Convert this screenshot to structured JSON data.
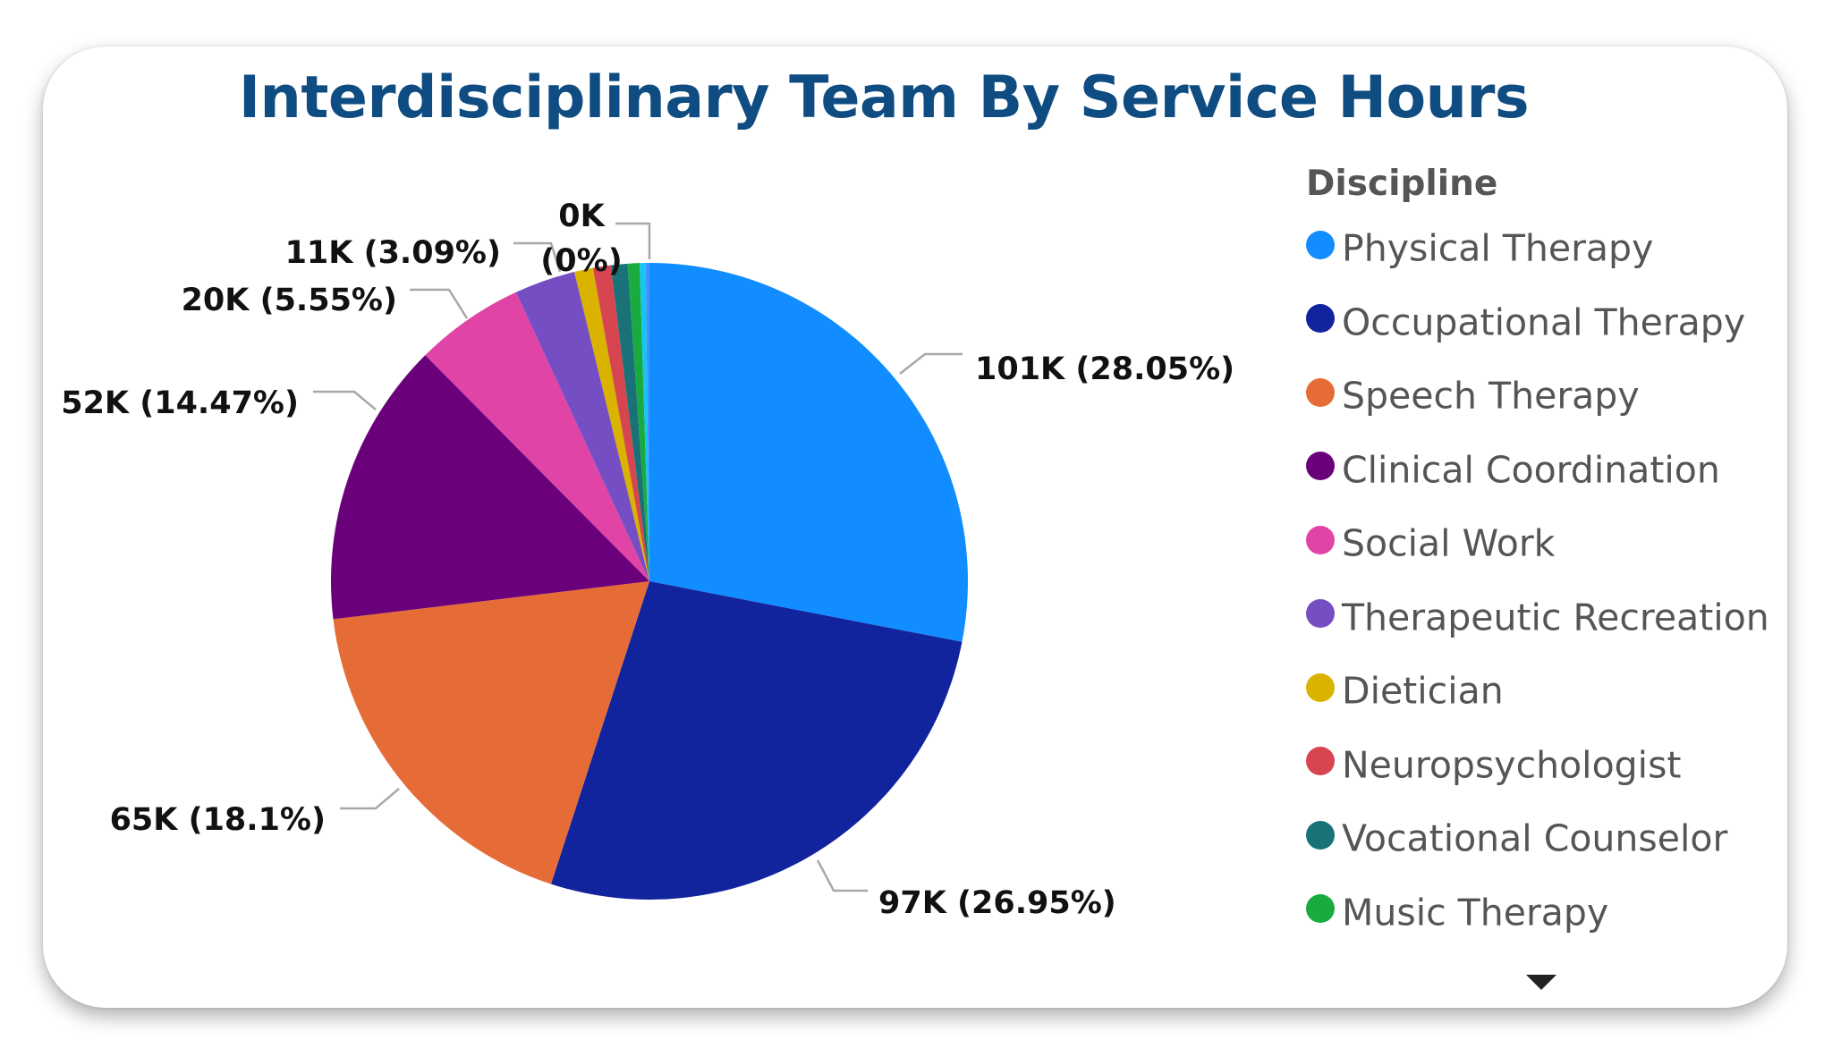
{
  "chart_data": {
    "type": "pie",
    "title": "Interdisciplinary Team By Service Hours",
    "legend_title": "Discipline",
    "legend_position": "right",
    "slices": [
      {
        "name": "Physical Therapy",
        "value": 101,
        "percent": 28.05,
        "label": "101K (28.05%)",
        "color": "#118dff"
      },
      {
        "name": "Occupational Therapy",
        "value": 97,
        "percent": 26.95,
        "label": "97K (26.95%)",
        "color": "#12239e"
      },
      {
        "name": "Speech Therapy",
        "value": 65,
        "percent": 18.1,
        "label": "65K (18.1%)",
        "color": "#e66c37"
      },
      {
        "name": "Clinical Coordination",
        "value": 52,
        "percent": 14.47,
        "label": "52K (14.47%)",
        "color": "#6b007b"
      },
      {
        "name": "Social Work",
        "value": 20,
        "percent": 5.55,
        "label": "20K (5.55%)",
        "color": "#e044a7"
      },
      {
        "name": "Therapeutic Recreation",
        "value": 11,
        "percent": 3.09,
        "label": "11K (3.09%)",
        "color": "#744ec2"
      },
      {
        "name": "Dietician",
        "value": 3,
        "percent": 0.95,
        "label": "",
        "color": "#d9b300"
      },
      {
        "name": "Neuropsychologist",
        "value": 3,
        "percent": 0.9,
        "label": "",
        "color": "#d64550"
      },
      {
        "name": "Vocational Counselor",
        "value": 3,
        "percent": 0.85,
        "label": "",
        "color": "#197278"
      },
      {
        "name": "Music Therapy",
        "value": 2,
        "percent": 0.6,
        "label": "",
        "color": "#1aab40"
      },
      {
        "name": "",
        "value": 1,
        "percent": 0.3,
        "label": "",
        "color": "#15c6f4"
      },
      {
        "name": "",
        "value": 0,
        "percent": 0.19,
        "label": "0K (0%)",
        "label_lines": [
          "0K",
          "(0%)"
        ],
        "color": "#4092ff"
      }
    ]
  },
  "legend": {
    "more_icon": "chevron-down-icon"
  }
}
